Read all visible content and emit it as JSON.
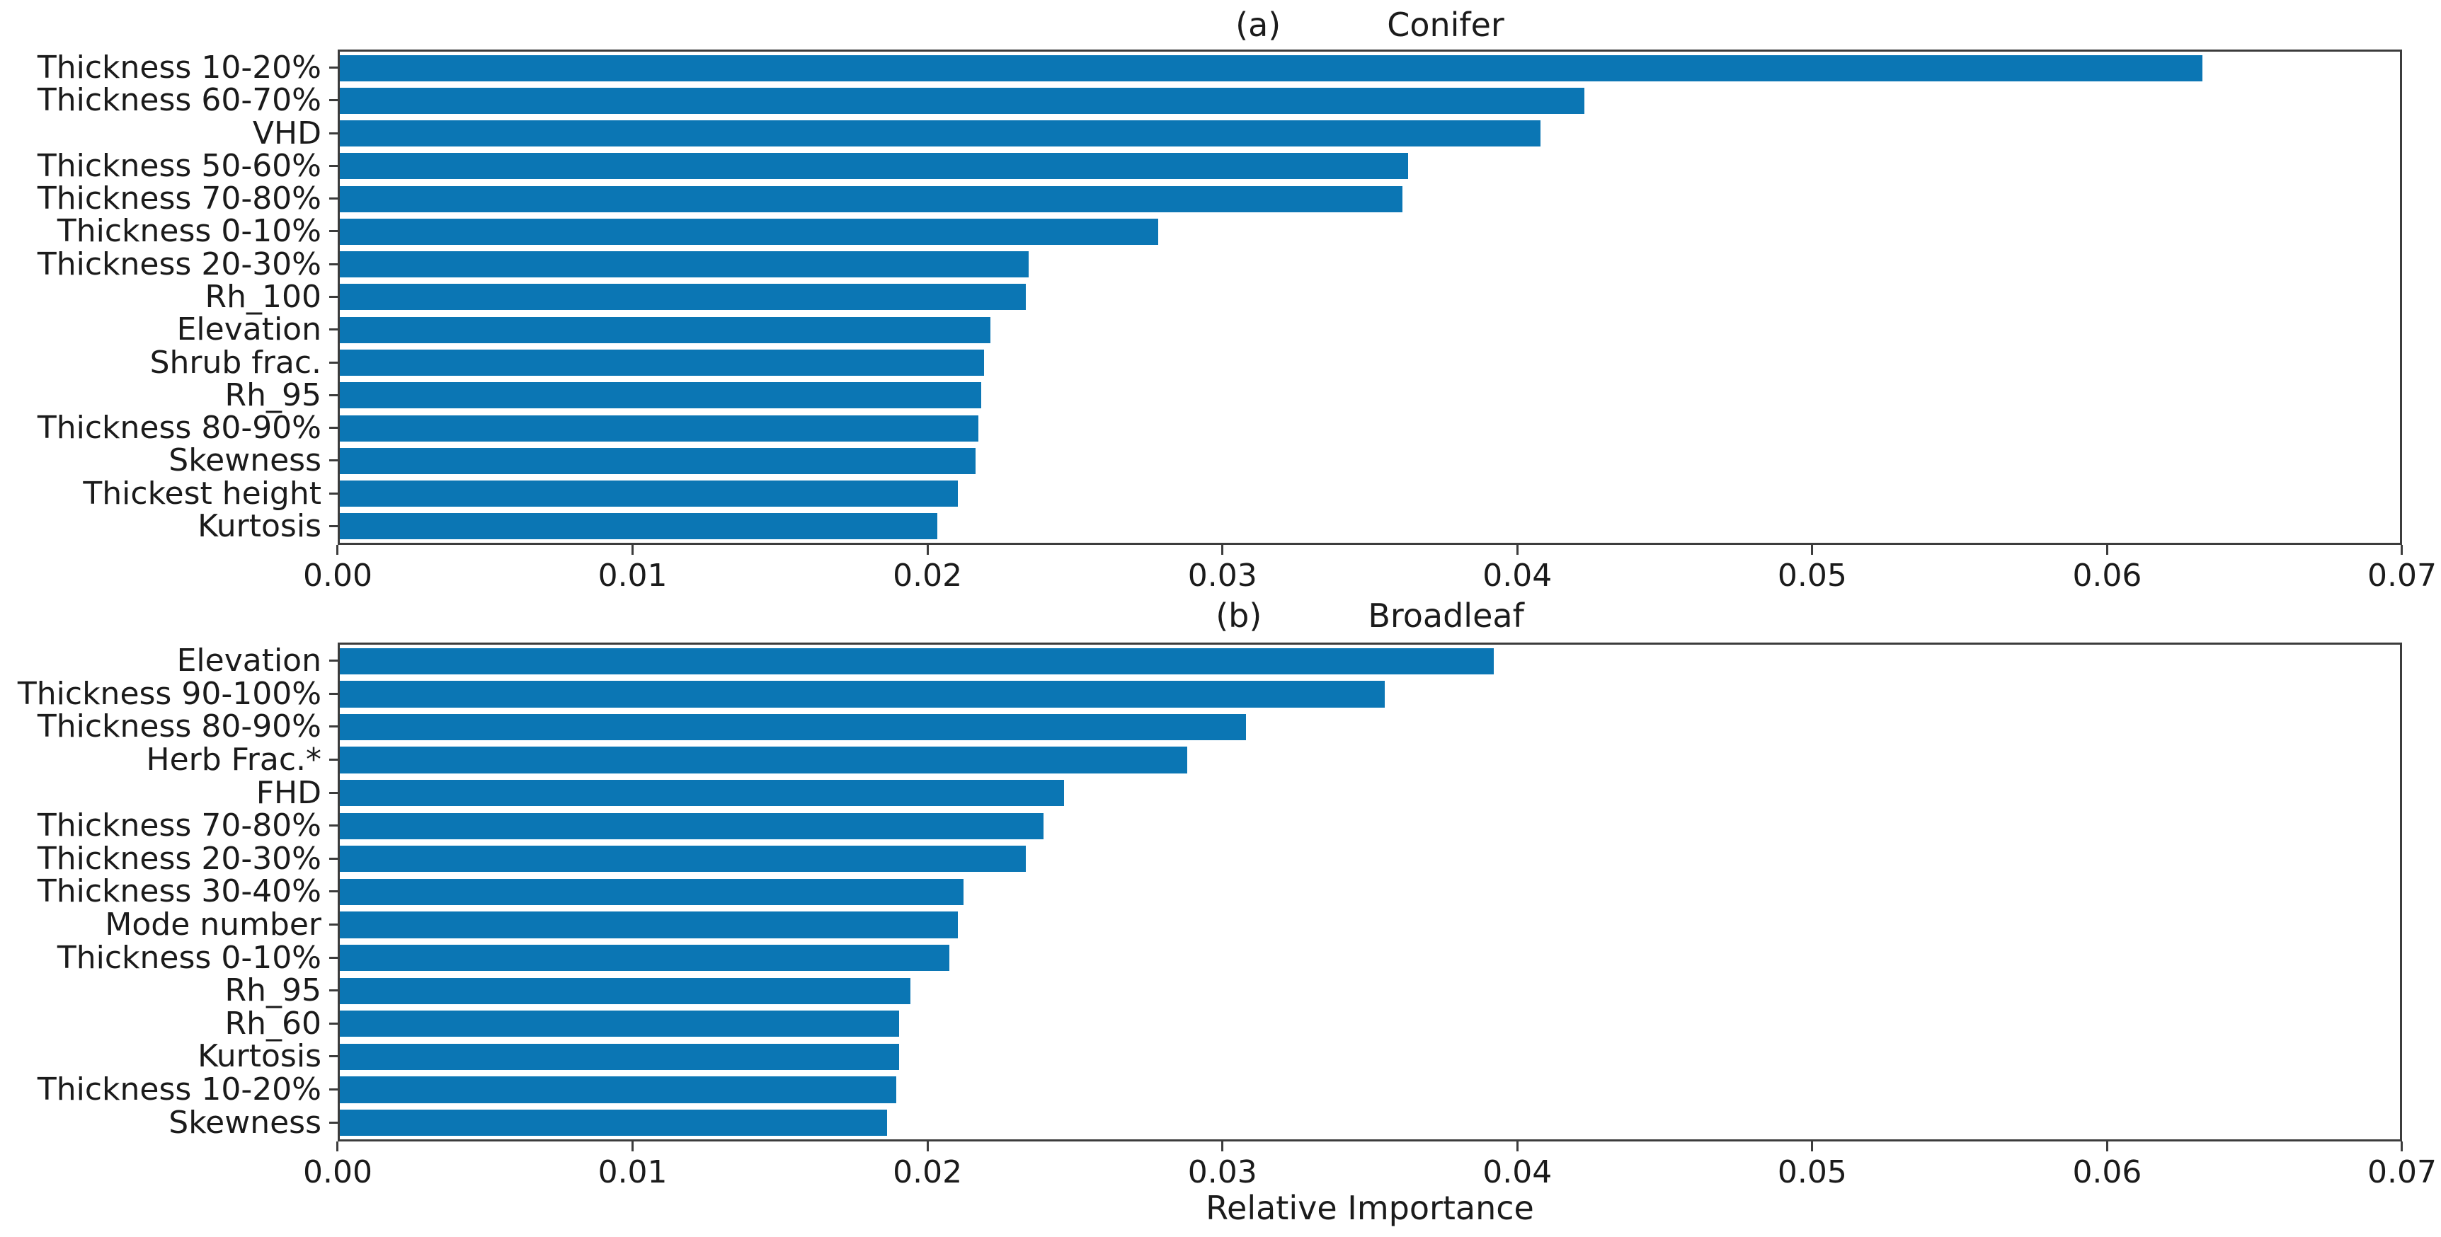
{
  "chart_data": [
    {
      "type": "bar",
      "orientation": "horizontal",
      "panel_label": "(a)",
      "title": "Conifer",
      "categories": [
        "Thickness 10-20%",
        "Thickness 60-70%",
        "VHD",
        "Thickness 50-60%",
        "Thickness 70-80%",
        "Thickness 0-10%",
        "Thickness 20-30%",
        "Rh_100",
        "Elevation",
        "Shrub frac.",
        "Rh_95",
        "Thickness 80-90%",
        "Skewness",
        "Thickest height",
        "Kurtosis"
      ],
      "values": [
        0.0633,
        0.0423,
        0.0408,
        0.0363,
        0.0361,
        0.0278,
        0.0234,
        0.0233,
        0.0221,
        0.0219,
        0.0218,
        0.0217,
        0.0216,
        0.021,
        0.0203
      ],
      "xlabel": "Relative Importance",
      "xlim": [
        0,
        0.07
      ],
      "xticks": [
        "0.00",
        "0.01",
        "0.02",
        "0.03",
        "0.04",
        "0.05",
        "0.06",
        "0.07"
      ],
      "bar_color": "#0b76b4",
      "grid": false,
      "legend": null
    },
    {
      "type": "bar",
      "orientation": "horizontal",
      "panel_label": "(b)",
      "title": "Broadleaf",
      "categories": [
        "Elevation",
        "Thickness 90-100%",
        "Thickness 80-90%",
        "Herb Frac.*",
        "FHD",
        "Thickness 70-80%",
        "Thickness 20-30%",
        "Thickness 30-40%",
        "Mode number",
        "Thickness 0-10%",
        "Rh_95",
        "Rh_60",
        "Kurtosis",
        "Thickness 10-20%",
        "Skewness"
      ],
      "values": [
        0.0392,
        0.0355,
        0.0308,
        0.0288,
        0.0246,
        0.0239,
        0.0233,
        0.0212,
        0.021,
        0.0207,
        0.0194,
        0.019,
        0.019,
        0.0189,
        0.0186
      ],
      "xlabel": "Relative Importance",
      "xlim": [
        0,
        0.07
      ],
      "xticks": [
        "0.00",
        "0.01",
        "0.02",
        "0.03",
        "0.04",
        "0.05",
        "0.06",
        "0.07"
      ],
      "bar_color": "#0b76b4",
      "grid": false,
      "legend": null
    }
  ],
  "figure": {
    "shared_xlabel": "Relative Importance",
    "axis_color": "#3c3c3c",
    "text_color": "#1b1b1b",
    "background_color": "#ffffff"
  }
}
